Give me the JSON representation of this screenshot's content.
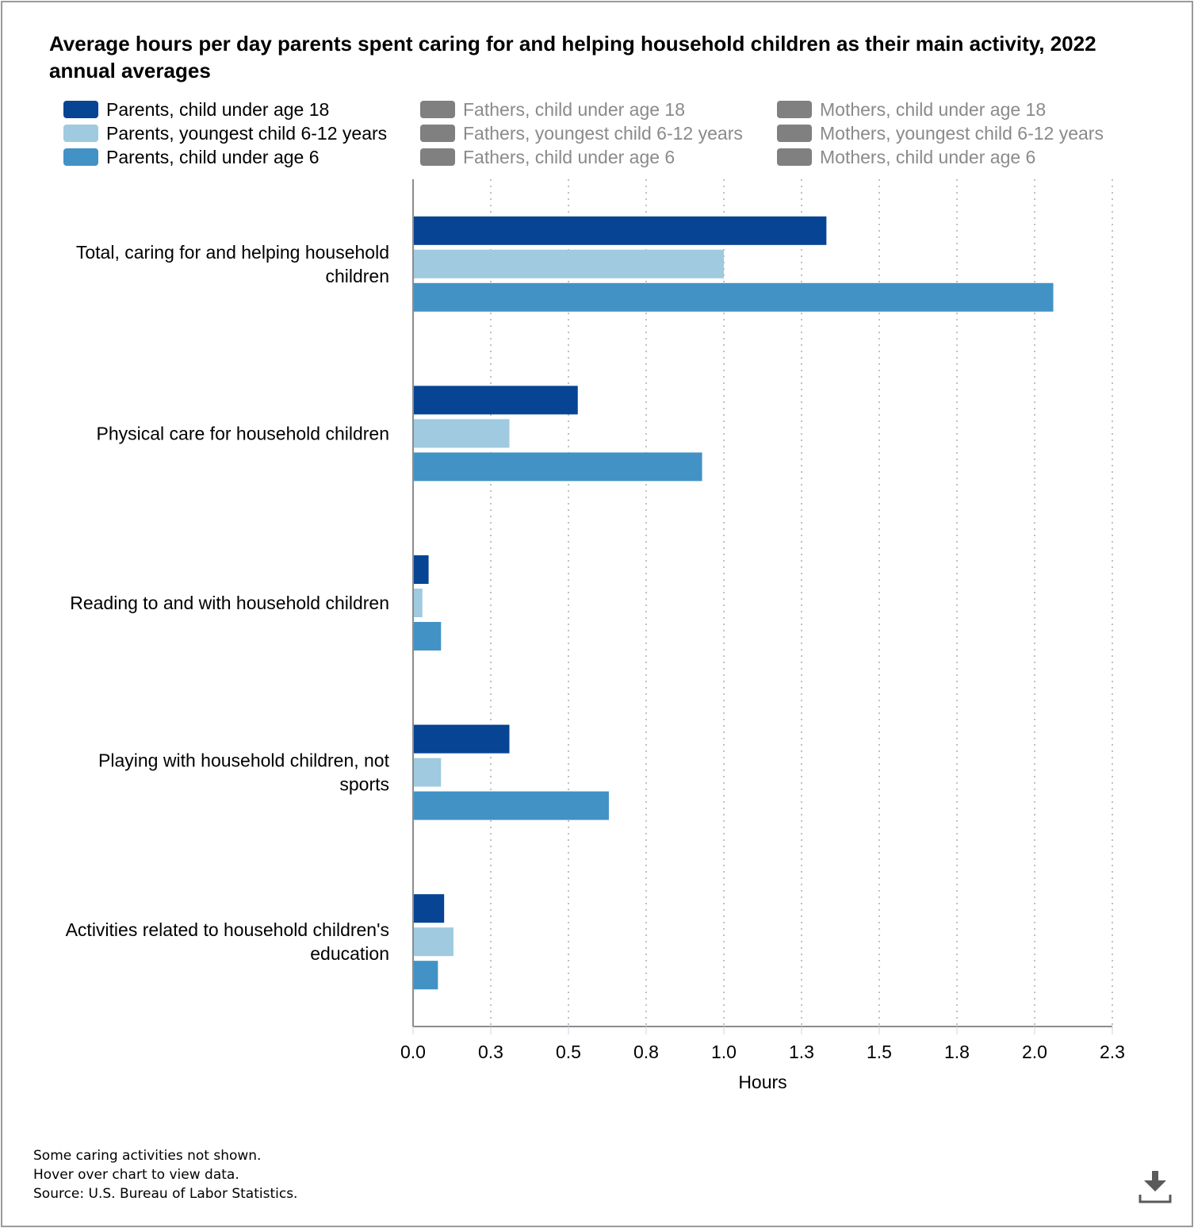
{
  "chart_data": {
    "type": "bar",
    "orientation": "horizontal",
    "title": "Average hours per day parents spent caring for and helping household children as their main activity, 2022 annual averages",
    "xlabel": "Hours",
    "ylabel": "",
    "xlim": [
      0,
      2.25
    ],
    "grid": true,
    "legend_position": "top",
    "x_ticks": [
      "0.0",
      "0.3",
      "0.5",
      "0.8",
      "1.0",
      "1.3",
      "1.5",
      "1.8",
      "2.0",
      "2.3"
    ],
    "x_tick_values": [
      0,
      0.25,
      0.5,
      0.75,
      1.0,
      1.25,
      1.5,
      1.75,
      2.0,
      2.25
    ],
    "categories": [
      [
        "Total, caring for and helping household",
        "children"
      ],
      [
        "Physical care for household children"
      ],
      [
        "Reading to and with household children"
      ],
      [
        "Playing with household children, not",
        "sports"
      ],
      [
        "Activities related to household children's",
        "education"
      ]
    ],
    "series": [
      {
        "name": "Parents, child under age 18",
        "color": "#074494",
        "active": true,
        "values": [
          1.33,
          0.53,
          0.05,
          0.31,
          0.1
        ]
      },
      {
        "name": "Parents, youngest child 6-12 years",
        "color": "#9fcadf",
        "active": true,
        "values": [
          1.0,
          0.31,
          0.03,
          0.09,
          0.13
        ]
      },
      {
        "name": "Parents, child under age 6",
        "color": "#4292c6",
        "active": true,
        "values": [
          2.06,
          0.93,
          0.09,
          0.63,
          0.08
        ]
      },
      {
        "name": "Fathers, child under age 18",
        "color": "#808080",
        "active": false,
        "values": []
      },
      {
        "name": "Fathers, youngest child 6-12 years",
        "color": "#808080",
        "active": false,
        "values": []
      },
      {
        "name": "Fathers, child under age 6",
        "color": "#808080",
        "active": false,
        "values": []
      },
      {
        "name": "Mothers, child under age 18",
        "color": "#808080",
        "active": false,
        "values": []
      },
      {
        "name": "Mothers, youngest child 6-12 years",
        "color": "#808080",
        "active": false,
        "values": []
      },
      {
        "name": "Mothers, child under age 6",
        "color": "#808080",
        "active": false,
        "values": []
      }
    ]
  },
  "notes": [
    "Some caring activities not shown.",
    "Hover over chart to view data.",
    "Source: U.S. Bureau of Labor Statistics."
  ],
  "colors": {
    "inactive_text": "#8a8a8a",
    "active_text": "#000000",
    "axis": "#8c8c8c",
    "grid": "#c0c0c0"
  },
  "download_icon": "download-icon"
}
